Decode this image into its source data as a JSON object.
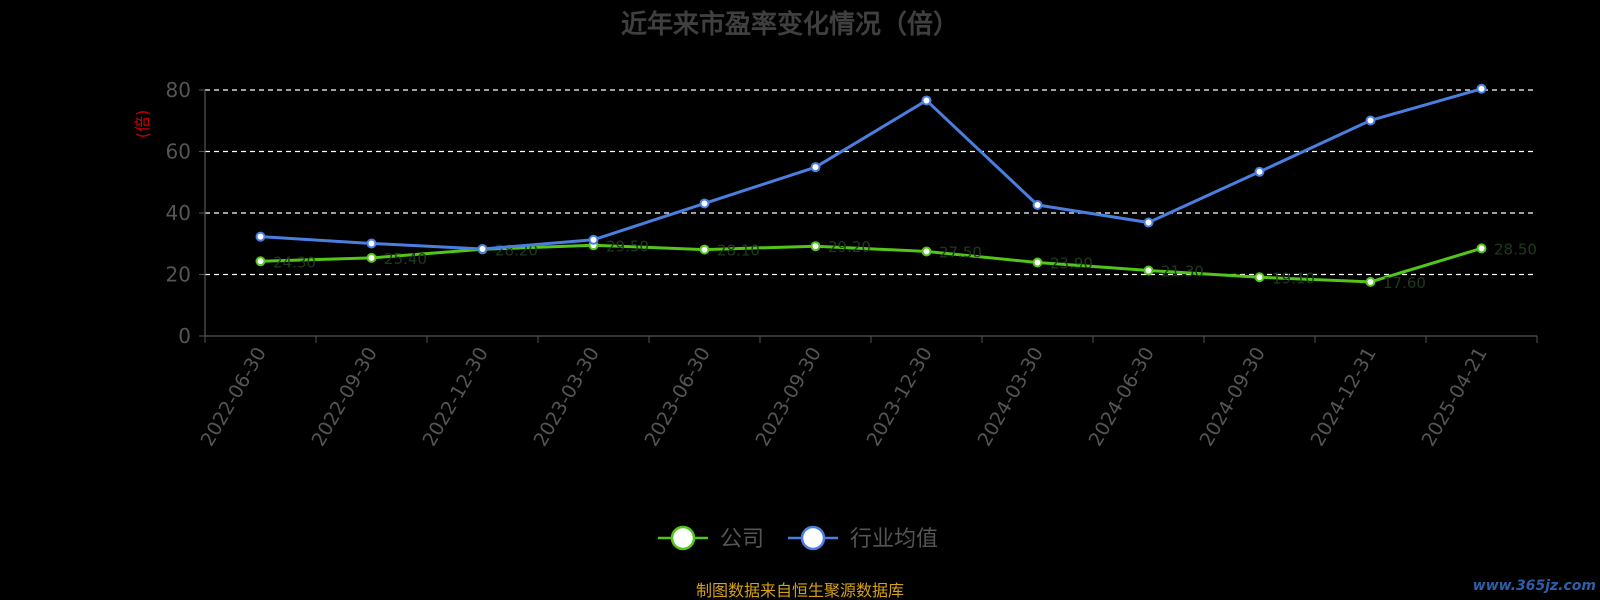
{
  "chart_data": {
    "type": "line",
    "title": "近年来市盈率变化情况（倍）",
    "ylabel": "(倍)",
    "ylim": [
      0,
      80
    ],
    "yticks": [
      0,
      20,
      40,
      60,
      80
    ],
    "grid": true,
    "legend_position": "bottom-center",
    "categories": [
      "2022-06-30",
      "2022-09-30",
      "2022-12-30",
      "2023-03-30",
      "2023-06-30",
      "2023-09-30",
      "2023-12-30",
      "2024-03-30",
      "2024-06-30",
      "2024-09-30",
      "2024-12-31",
      "2025-04-21"
    ],
    "series": [
      {
        "name": "公司",
        "color": "#52c41a",
        "values": [
          24.3,
          25.4,
          28.2,
          29.5,
          28.1,
          29.2,
          27.5,
          23.9,
          21.3,
          19.1,
          17.6,
          28.5
        ]
      },
      {
        "name": "行业均值",
        "color": "#4a7fe0",
        "values": [
          32.3,
          30.1,
          28.3,
          31.3,
          43.1,
          54.9,
          76.6,
          42.6,
          36.9,
          53.4,
          70.1,
          80.4
        ]
      }
    ]
  },
  "footer": "制图数据来自恒生聚源数据库",
  "watermark": "www.365jz.com",
  "colors": {
    "background": "#000000",
    "grid": "#ffffff",
    "axis": "#555555",
    "footer": "#d4a017"
  }
}
